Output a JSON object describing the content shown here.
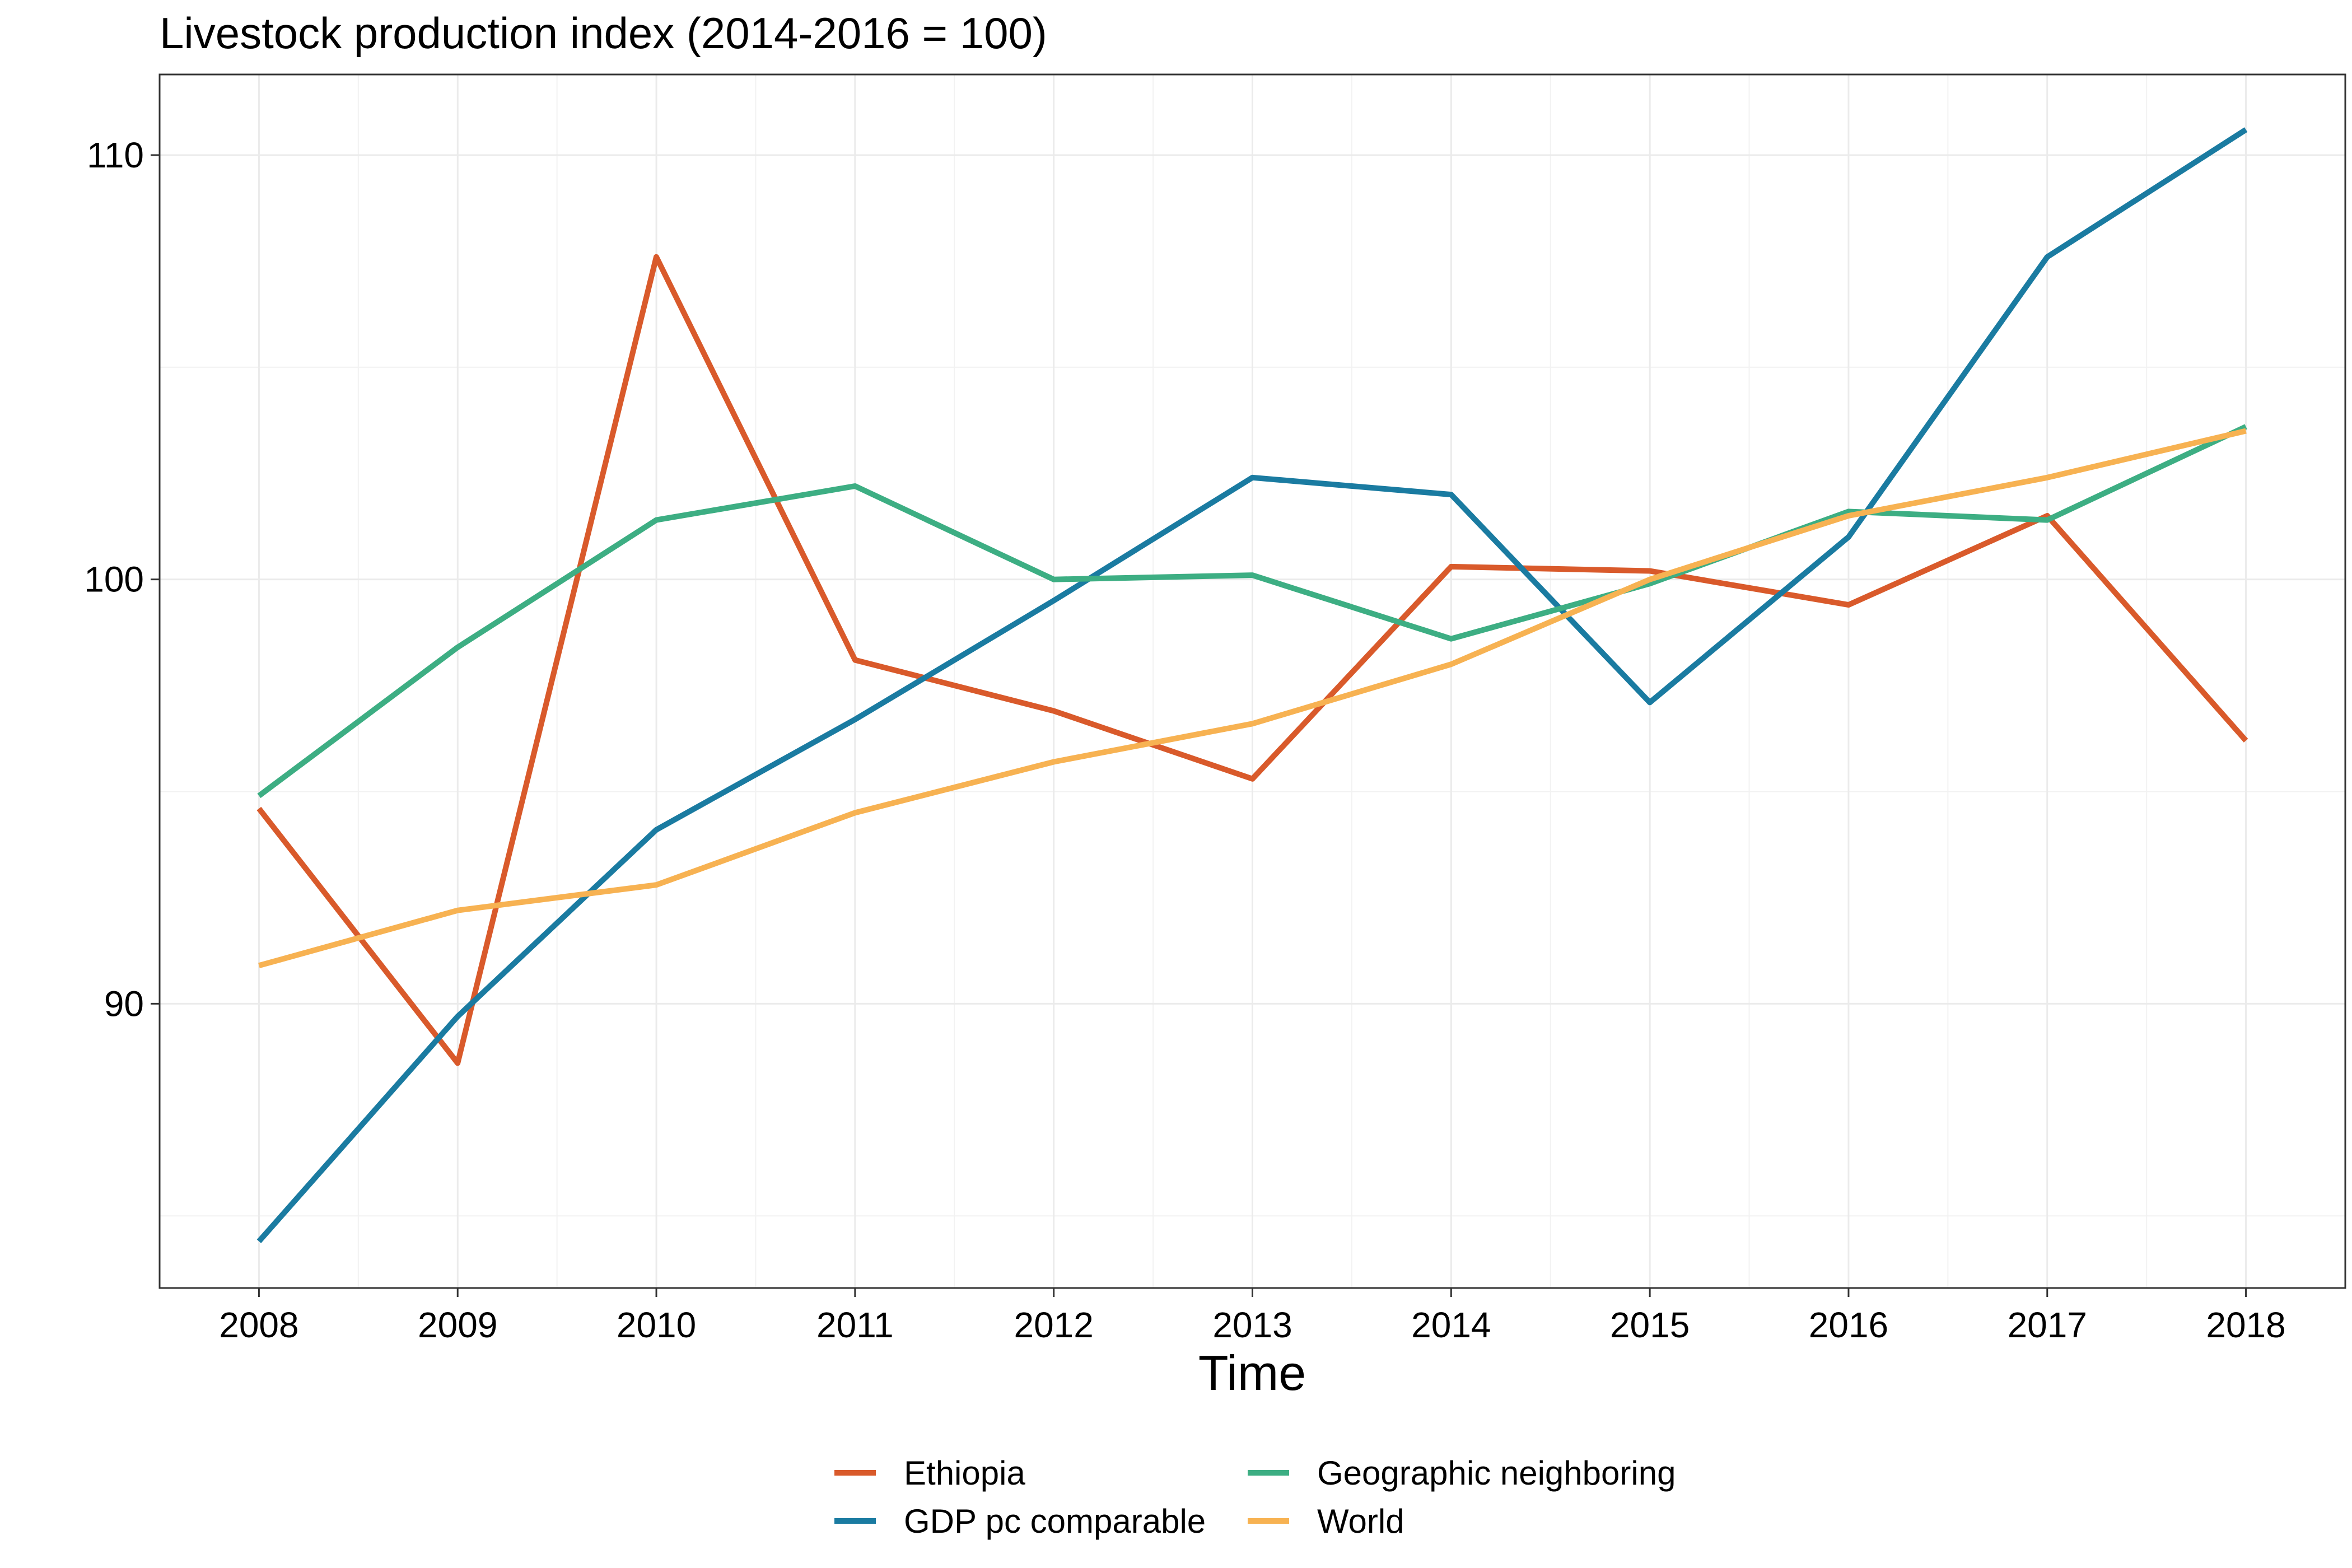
{
  "chart_data": {
    "type": "line",
    "title": "Livestock production index (2014-2016 = 100)",
    "xlabel": "Time",
    "ylabel": "",
    "x": [
      2008,
      2009,
      2010,
      2011,
      2012,
      2013,
      2014,
      2015,
      2016,
      2017,
      2018
    ],
    "xlim": [
      2007.5,
      2018.5
    ],
    "ylim": [
      83.3,
      111.9
    ],
    "yticks": [
      90,
      100,
      110
    ],
    "y_minor_ticks": [
      85,
      95,
      105
    ],
    "grid": true,
    "legend_position": "bottom",
    "series": [
      {
        "name": "Ethiopia",
        "color": "#D95A2B",
        "values": [
          94.6,
          88.6,
          107.6,
          98.1,
          96.9,
          95.3,
          100.3,
          100.2,
          99.4,
          101.5,
          96.2
        ]
      },
      {
        "name": "GDP pc comparable",
        "color": "#1A7BA1",
        "values": [
          84.4,
          89.7,
          94.1,
          96.7,
          99.5,
          102.4,
          102.0,
          97.1,
          101.0,
          107.6,
          110.6
        ]
      },
      {
        "name": "Geographic neighboring",
        "color": "#3DAE83",
        "values": [
          94.9,
          98.4,
          101.4,
          102.2,
          100.0,
          100.1,
          98.6,
          99.9,
          101.6,
          101.4,
          103.6
        ]
      },
      {
        "name": "World",
        "color": "#F7B252",
        "values": [
          90.9,
          92.2,
          92.8,
          94.5,
          95.7,
          96.6,
          98.0,
          100.0,
          101.5,
          102.4,
          103.5
        ]
      }
    ]
  }
}
